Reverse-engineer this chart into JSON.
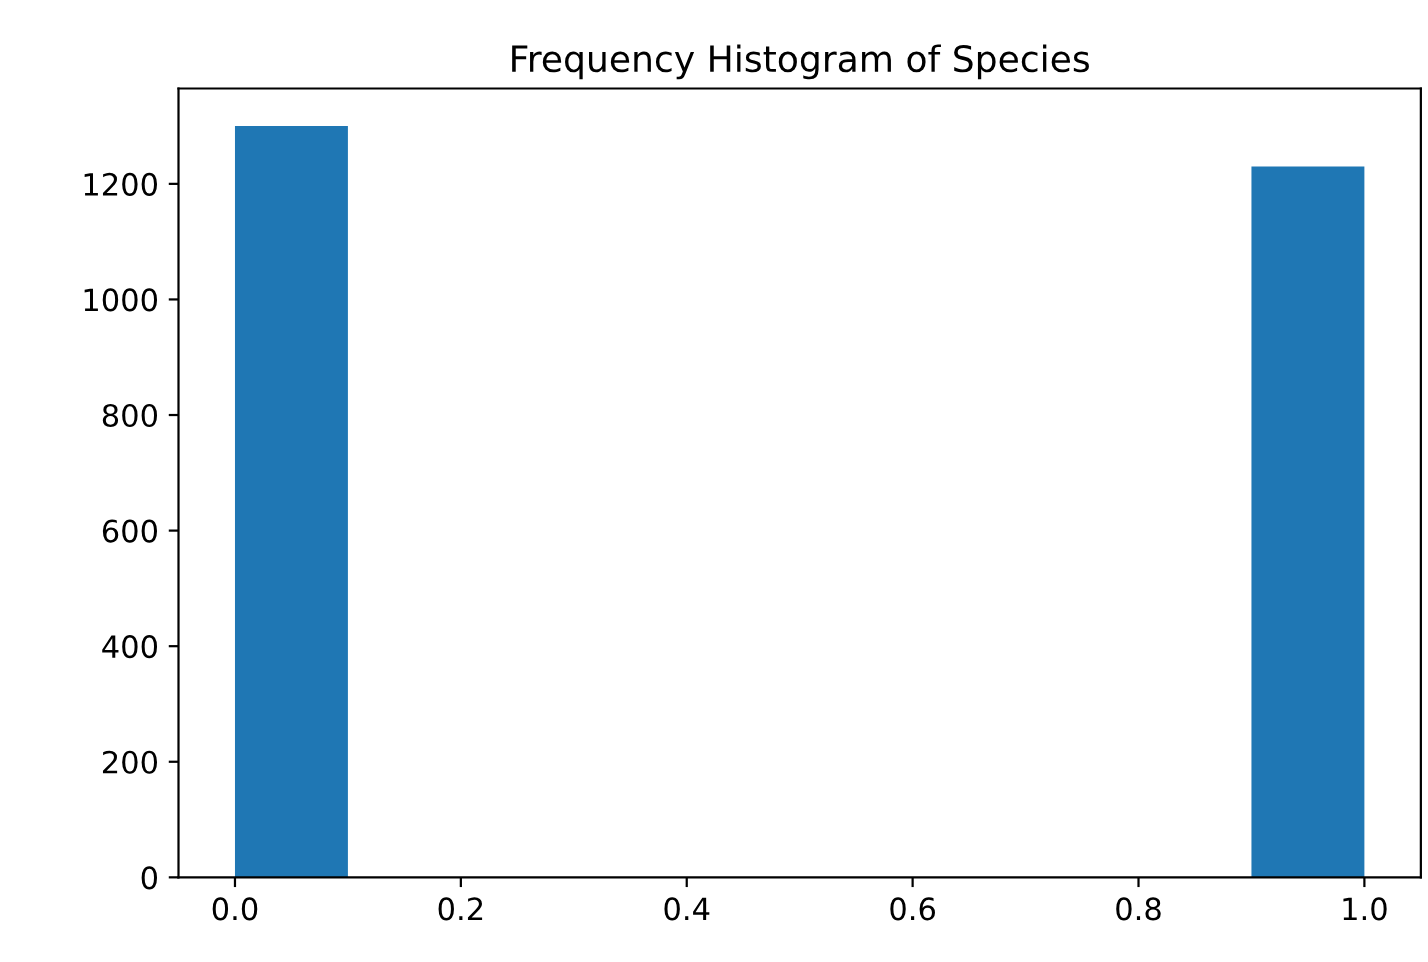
{
  "chart_data": {
    "type": "histogram",
    "title": "Frequency Histogram of Species",
    "bins": [
      0.0,
      0.1,
      0.2,
      0.3,
      0.4,
      0.5,
      0.6,
      0.7,
      0.8,
      0.9,
      1.0
    ],
    "values": [
      1300,
      0,
      0,
      0,
      0,
      0,
      0,
      0,
      0,
      1230
    ],
    "color": "#1f77b4",
    "xlim": [
      -0.05,
      1.05
    ],
    "xticks": [
      {
        "value": 0,
        "label": "0.0"
      },
      0.2,
      0.4,
      0.6,
      0.8,
      {
        "value": 1,
        "label": "1.0"
      }
    ],
    "ylim": [
      0,
      1365
    ],
    "yticks": [
      0,
      200,
      400,
      600,
      800,
      1000,
      1200
    ],
    "grid": false
  }
}
